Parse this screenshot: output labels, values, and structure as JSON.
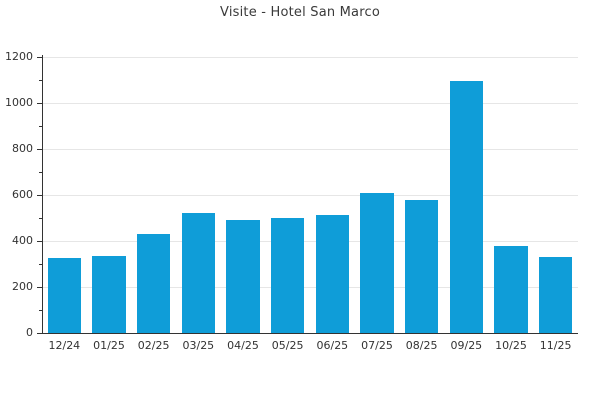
{
  "page": {
    "background_color": "#ffffff"
  },
  "chart_data": {
    "type": "bar",
    "title": "Visite - Hotel San Marco",
    "categories": [
      "12/24",
      "01/25",
      "02/25",
      "03/25",
      "04/25",
      "05/25",
      "06/25",
      "07/25",
      "08/25",
      "09/25",
      "10/25",
      "11/25"
    ],
    "values": [
      325,
      335,
      430,
      520,
      490,
      500,
      515,
      610,
      580,
      1095,
      380,
      330
    ],
    "xlabel": "",
    "ylabel": "",
    "ylim": [
      0,
      1200
    ],
    "yticks": [
      0,
      200,
      400,
      600,
      800,
      1000,
      1200
    ],
    "ytick_interval": 200,
    "minor_tick_interval": 100,
    "grid": true,
    "legend": "none",
    "bar_color": "#0f9dd8",
    "grid_color": "#e6e6e6",
    "axis_color": "#333333",
    "text_color": "#333333",
    "title_color": "#3a3a3a"
  }
}
